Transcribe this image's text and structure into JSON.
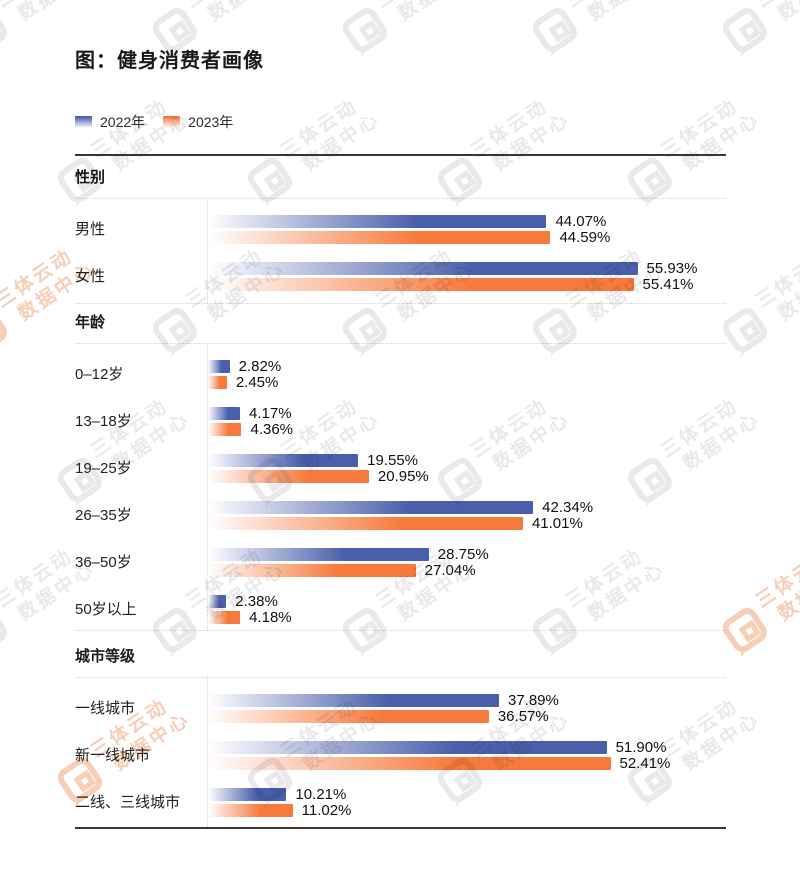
{
  "page_title": "图：健身消费者画像",
  "legend": {
    "items": [
      {
        "label": "2022年",
        "color": "#4A5FAB"
      },
      {
        "label": "2023年",
        "color": "#F7793C"
      }
    ]
  },
  "watermark": {
    "line1": "三体云动",
    "line2": "数据中心"
  },
  "chart_data": {
    "type": "bar",
    "orientation": "horizontal",
    "title": "图：健身消费者画像",
    "value_unit": "%",
    "series": [
      "2022年",
      "2023年"
    ],
    "series_colors": [
      "#4A5FAB",
      "#F7793C"
    ],
    "value_label_format": "0.00%",
    "sections": [
      {
        "header": "性别",
        "rows": [
          {
            "label": "男性",
            "values": [
              44.07,
              44.59
            ]
          },
          {
            "label": "女性",
            "values": [
              55.93,
              55.41
            ]
          }
        ]
      },
      {
        "header": "年龄",
        "rows": [
          {
            "label": "0–12岁",
            "values": [
              2.82,
              2.45
            ]
          },
          {
            "label": "13–18岁",
            "values": [
              4.17,
              4.36
            ]
          },
          {
            "label": "19–25岁",
            "values": [
              19.55,
              20.95
            ]
          },
          {
            "label": "26–35岁",
            "values": [
              42.34,
              41.01
            ]
          },
          {
            "label": "36–50岁",
            "values": [
              28.75,
              27.04
            ]
          },
          {
            "label": "50岁以上",
            "values": [
              2.38,
              4.18
            ]
          }
        ]
      },
      {
        "header": "城市等级",
        "rows": [
          {
            "label": "一线城市",
            "values": [
              37.89,
              36.57
            ]
          },
          {
            "label": "新一线城市",
            "values": [
              51.9,
              52.41
            ]
          },
          {
            "label": "二线、三线城市",
            "values": [
              10.21,
              11.02
            ]
          }
        ]
      }
    ]
  }
}
